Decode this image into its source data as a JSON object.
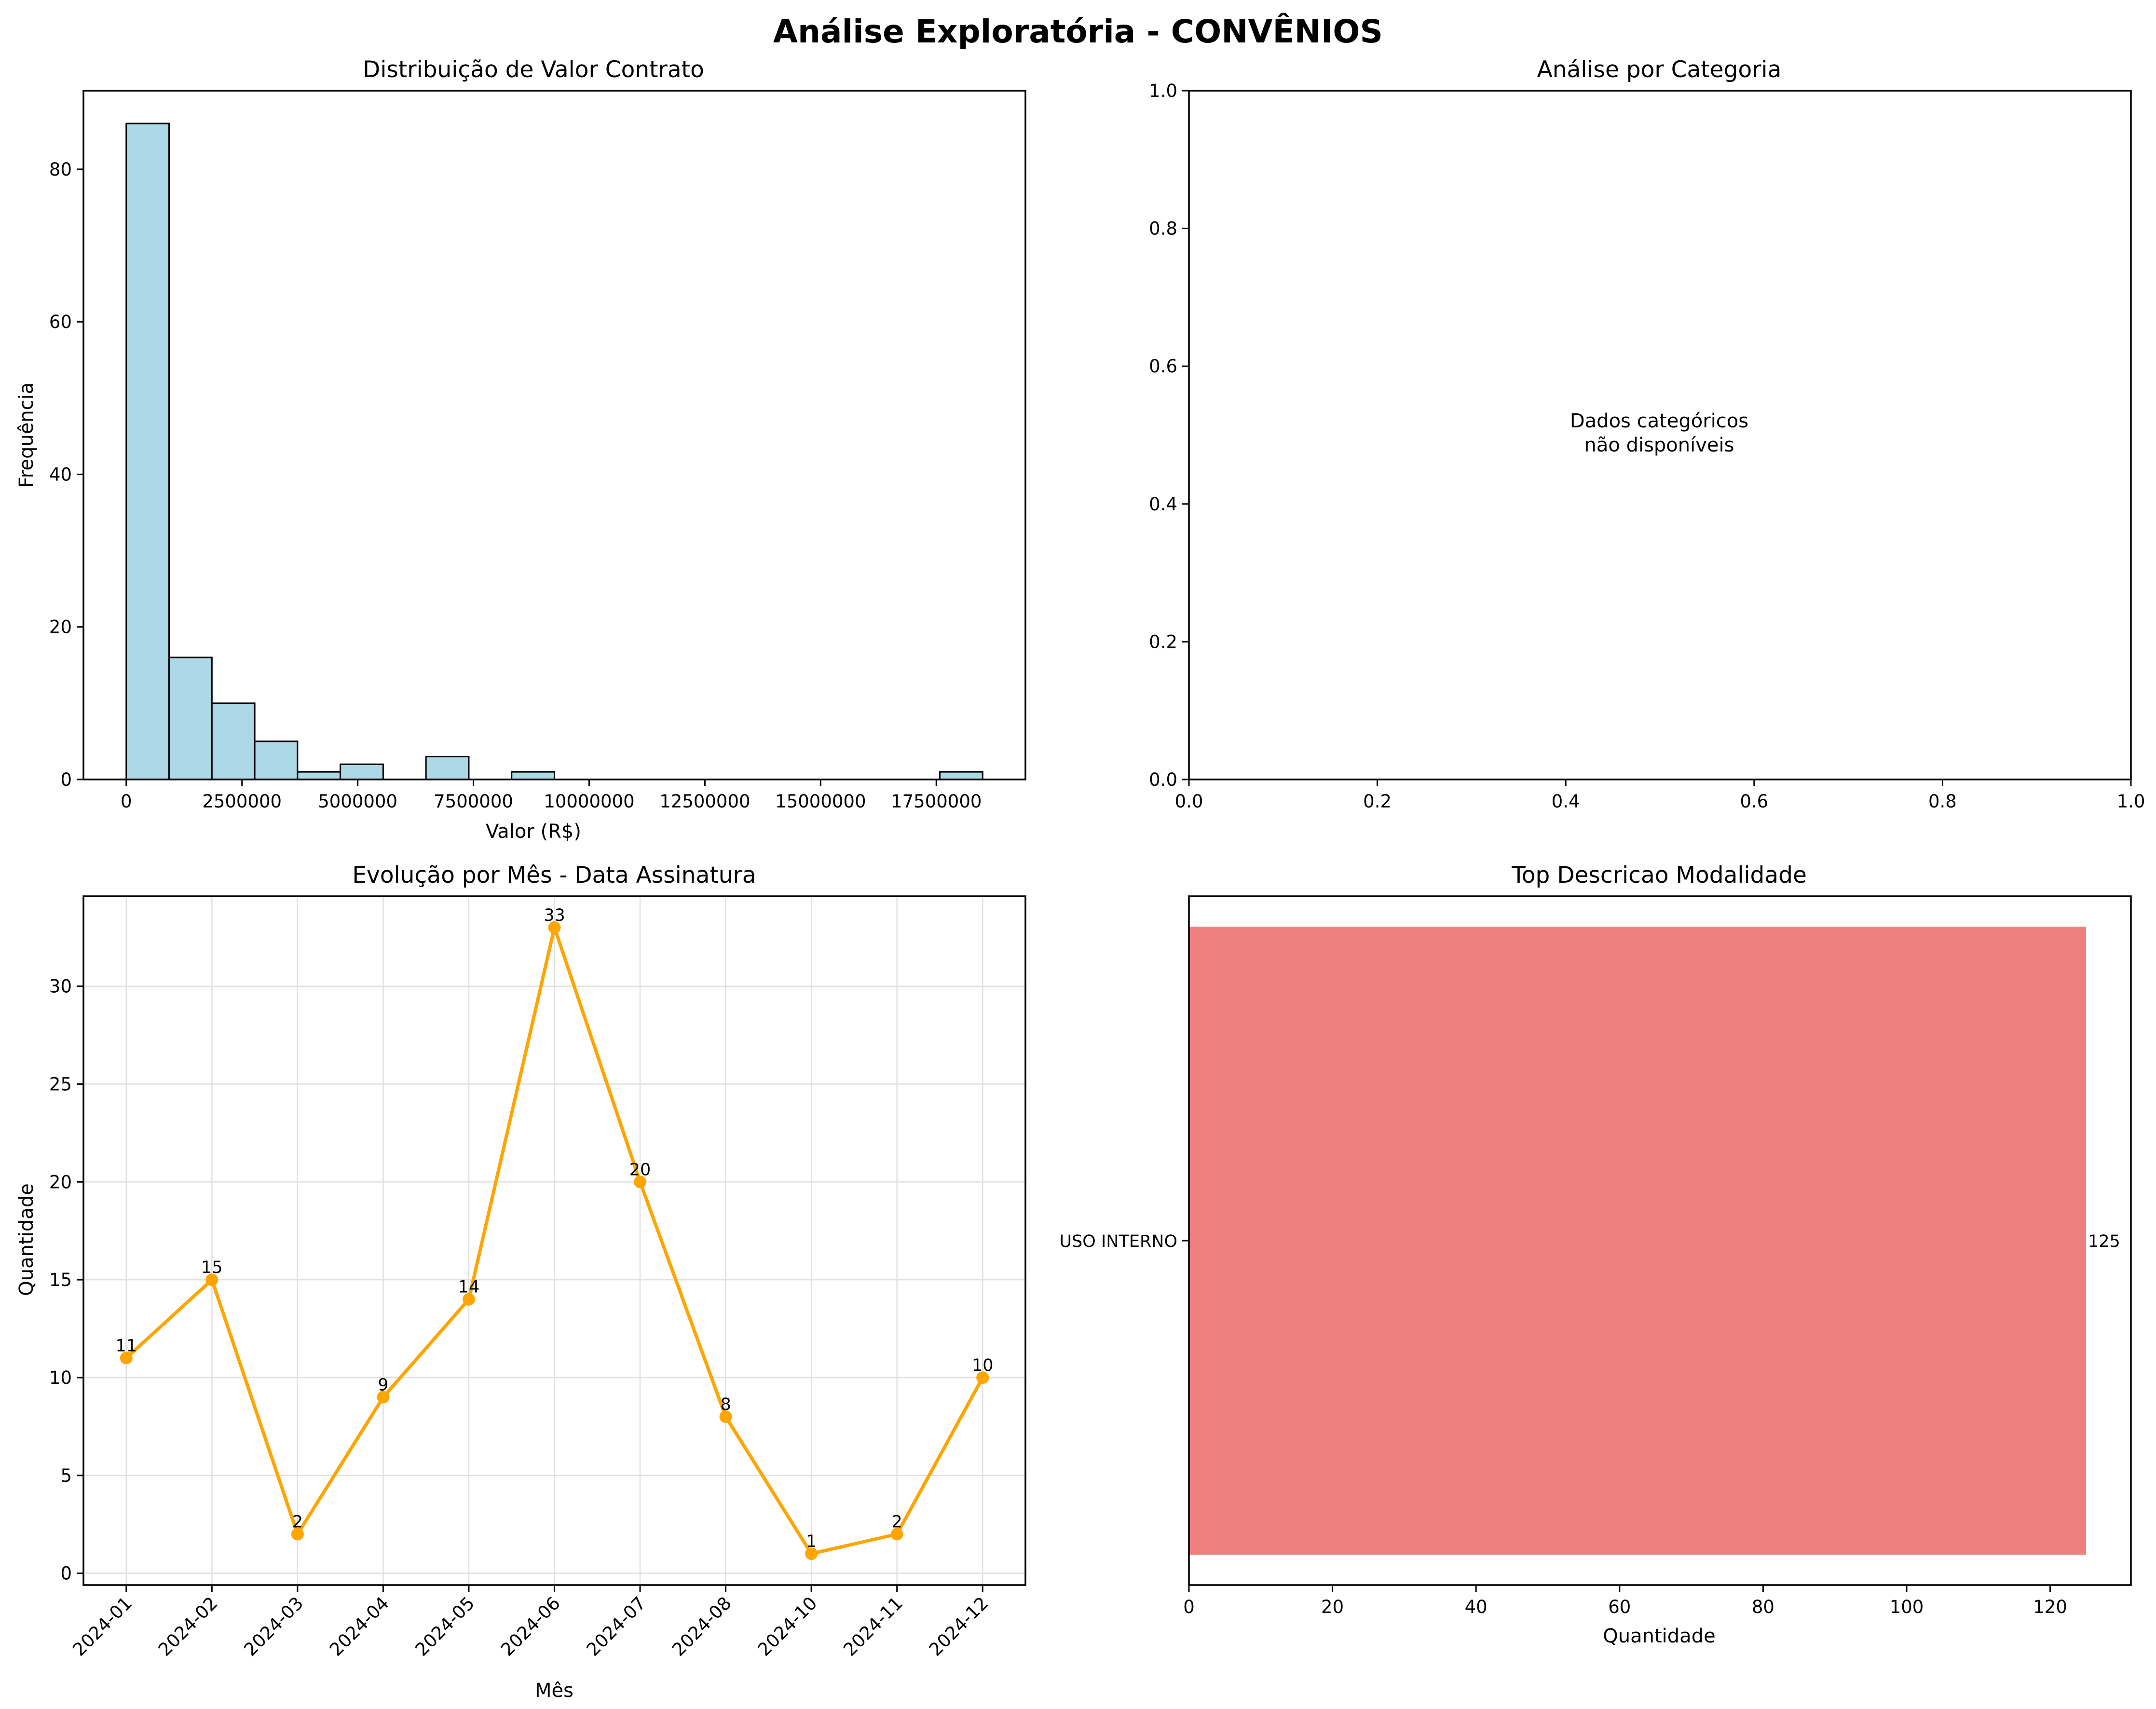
{
  "figure": {
    "title": "Análise Exploratória - CONVÊNIOS"
  },
  "colors": {
    "hist_fill": "#add8e6",
    "line": "#ffa500",
    "hbar_fill": "#f08080",
    "axis": "#000000",
    "grid": "#e0e0e0"
  },
  "chart_data": [
    {
      "id": "hist",
      "type": "bar",
      "title": "Distribuição de Valor Contrato",
      "xlabel": "Valor (R$)",
      "ylabel": "Frequência",
      "bins": [
        {
          "x0": 0,
          "x1": 925000,
          "count": 86
        },
        {
          "x0": 925000,
          "x1": 1850000,
          "count": 16
        },
        {
          "x0": 1850000,
          "x1": 2775000,
          "count": 10
        },
        {
          "x0": 2775000,
          "x1": 3700000,
          "count": 5
        },
        {
          "x0": 3700000,
          "x1": 4625000,
          "count": 1
        },
        {
          "x0": 4625000,
          "x1": 5550000,
          "count": 2
        },
        {
          "x0": 5550000,
          "x1": 6475000,
          "count": 0
        },
        {
          "x0": 6475000,
          "x1": 7400000,
          "count": 3
        },
        {
          "x0": 7400000,
          "x1": 8325000,
          "count": 0
        },
        {
          "x0": 8325000,
          "x1": 9250000,
          "count": 1
        },
        {
          "x0": 9250000,
          "x1": 10175000,
          "count": 0
        },
        {
          "x0": 10175000,
          "x1": 11100000,
          "count": 0
        },
        {
          "x0": 11100000,
          "x1": 12025000,
          "count": 0
        },
        {
          "x0": 12025000,
          "x1": 12950000,
          "count": 0
        },
        {
          "x0": 12950000,
          "x1": 13875000,
          "count": 0
        },
        {
          "x0": 13875000,
          "x1": 14800000,
          "count": 0
        },
        {
          "x0": 14800000,
          "x1": 15725000,
          "count": 0
        },
        {
          "x0": 15725000,
          "x1": 16650000,
          "count": 0
        },
        {
          "x0": 16650000,
          "x1": 17575000,
          "count": 0
        },
        {
          "x0": 17575000,
          "x1": 18500000,
          "count": 1
        }
      ],
      "xlim": [
        -925000,
        19425000
      ],
      "ylim": [
        0,
        90.3
      ],
      "xticks": [
        0,
        2500000,
        5000000,
        7500000,
        10000000,
        12500000,
        15000000,
        17500000
      ],
      "xtick_labels": [
        "0",
        "2500000",
        "5000000",
        "7500000",
        "10000000",
        "12500000",
        "15000000",
        "17500000"
      ],
      "yticks": [
        0,
        20,
        40,
        60,
        80
      ],
      "ytick_labels": [
        "0",
        "20",
        "40",
        "60",
        "80"
      ],
      "grid": false
    },
    {
      "id": "empty",
      "type": "scatter",
      "title": "Análise por Categoria",
      "xlim": [
        0,
        1
      ],
      "ylim": [
        0,
        1
      ],
      "xticks": [
        0,
        0.2,
        0.4,
        0.6,
        0.8,
        1.0
      ],
      "xtick_labels": [
        "0.0",
        "0.2",
        "0.4",
        "0.6",
        "0.8",
        "1.0"
      ],
      "yticks": [
        0,
        0.2,
        0.4,
        0.6,
        0.8,
        1.0
      ],
      "ytick_labels": [
        "0.0",
        "0.2",
        "0.4",
        "0.6",
        "0.8",
        "1.0"
      ],
      "annotation_lines": [
        "Dados categóricos",
        "não disponíveis"
      ],
      "grid": false
    },
    {
      "id": "line",
      "type": "line",
      "title": "Evolução por Mês - Data Assinatura",
      "xlabel": "Mês",
      "ylabel": "Quantidade",
      "categories": [
        "2024-01",
        "2024-02",
        "2024-03",
        "2024-04",
        "2024-05",
        "2024-06",
        "2024-07",
        "2024-08",
        "2024-10",
        "2024-11",
        "2024-12"
      ],
      "values": [
        11,
        15,
        2,
        9,
        14,
        33,
        20,
        8,
        1,
        2,
        10
      ],
      "point_labels": [
        "11",
        "15",
        "2",
        "9",
        "14",
        "33",
        "20",
        "8",
        "1",
        "2",
        "10"
      ],
      "ylim": [
        -0.6,
        34.6
      ],
      "yticks": [
        0,
        5,
        10,
        15,
        20,
        25,
        30
      ],
      "ytick_labels": [
        "0",
        "5",
        "10",
        "15",
        "20",
        "25",
        "30"
      ],
      "grid": true
    },
    {
      "id": "hbar",
      "type": "bar",
      "orientation": "horizontal",
      "title": "Top Descricao Modalidade",
      "xlabel": "Quantidade",
      "categories": [
        "USO INTERNO"
      ],
      "values": [
        125
      ],
      "value_labels": [
        "125"
      ],
      "xlim": [
        0,
        131.25
      ],
      "xticks": [
        0,
        20,
        40,
        60,
        80,
        100,
        120
      ],
      "xtick_labels": [
        "0",
        "20",
        "40",
        "60",
        "80",
        "100",
        "120"
      ],
      "grid": false
    }
  ]
}
